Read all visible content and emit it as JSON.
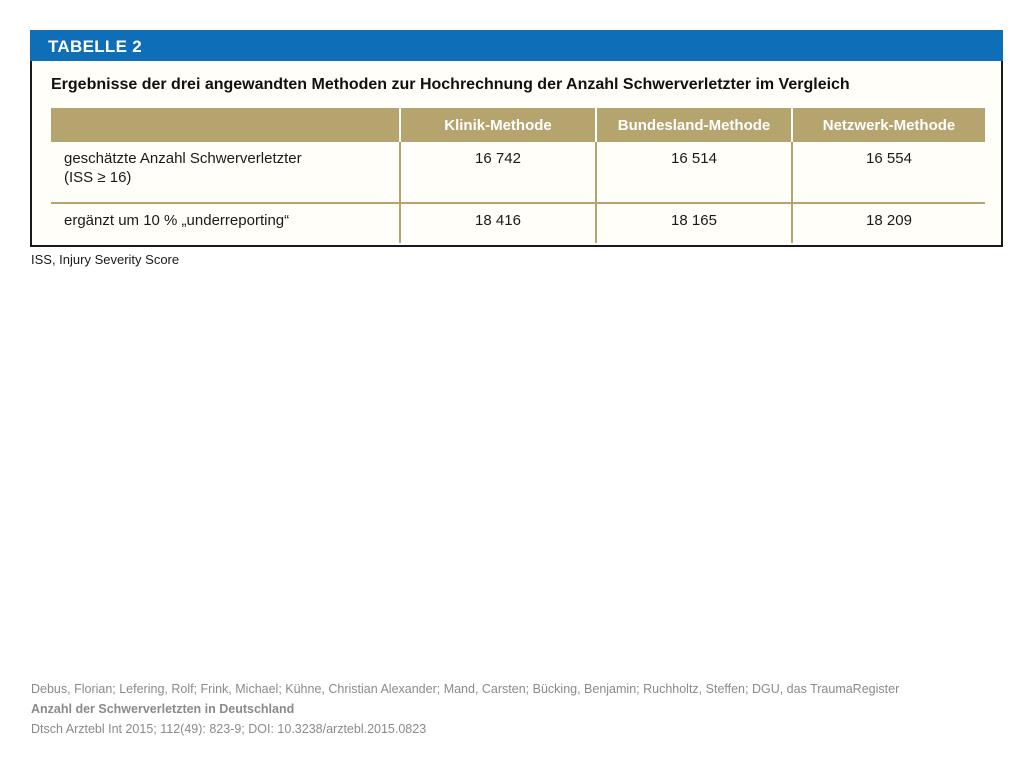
{
  "table": {
    "label": "TABELLE 2",
    "title": "Ergebnisse der drei angewandten Methoden zur Hochrechnung der Anzahl Schwerverletzter im Vergleich",
    "columns": [
      "",
      "Klinik-Methode",
      "Bundesland-Methode",
      "Netzwerk-Methode"
    ],
    "rows": [
      {
        "label_line1": "geschätzte Anzahl Schwerverletzter",
        "label_line2": "(ISS ≥ 16)",
        "values": [
          "16 742",
          "16 514",
          "16 554"
        ]
      },
      {
        "label_line1": "ergänzt um 10 % „underreporting“",
        "values": [
          "18 416",
          "18 165",
          "18 209"
        ]
      }
    ],
    "footnote": "ISS, Injury Severity Score"
  },
  "citation": {
    "authors": "Debus, Florian; Lefering, Rolf; Frink, Michael; Kühne, Christian Alexander; Mand, Carsten; Bücking, Benjamin; Ruchholtz, Steffen; DGU, das TraumaRegister",
    "title": "Anzahl der Schwerverletzten in Deutschland",
    "source": "Dtsch Arztebl Int 2015; 112(49): 823-9; DOI: 10.3238/arztebl.2015.0823"
  },
  "colors": {
    "header_blue": "#0e6eb8",
    "table_header_gold": "#b5a46e"
  }
}
